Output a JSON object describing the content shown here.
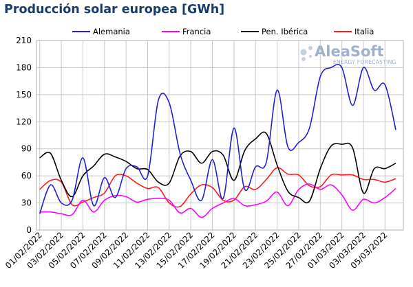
{
  "chart_data": {
    "type": "line",
    "title": "Producción solar europea [GWh]",
    "xlabel": "",
    "ylabel": "",
    "ylim": [
      0,
      210
    ],
    "yticks": [
      0,
      30,
      60,
      90,
      120,
      150,
      180,
      210
    ],
    "grid": true,
    "legend_position": "top",
    "x": [
      "01/02/2022",
      "02/02/2022",
      "03/02/2022",
      "04/02/2022",
      "05/02/2022",
      "06/02/2022",
      "07/02/2022",
      "08/02/2022",
      "09/02/2022",
      "10/02/2022",
      "11/02/2022",
      "12/02/2022",
      "13/02/2022",
      "14/02/2022",
      "15/02/2022",
      "16/02/2022",
      "17/02/2022",
      "18/02/2022",
      "19/02/2022",
      "20/02/2022",
      "21/02/2022",
      "22/02/2022",
      "23/02/2022",
      "24/02/2022",
      "25/02/2022",
      "26/02/2022",
      "27/02/2022",
      "28/02/2022",
      "01/03/2022",
      "02/03/2022",
      "03/03/2022",
      "04/03/2022",
      "05/03/2022",
      "06/03/2022"
    ],
    "xtick_labels": [
      "01/02/2022",
      "03/02/2022",
      "05/02/2022",
      "07/02/2022",
      "09/02/2022",
      "11/02/2022",
      "13/02/2022",
      "15/02/2022",
      "17/02/2022",
      "19/02/2022",
      "21/02/2022",
      "23/02/2022",
      "25/02/2022",
      "27/02/2022",
      "01/03/2022",
      "03/03/2022",
      "05/03/2022"
    ],
    "series": [
      {
        "name": "Alemania",
        "color": "#1f1fd6",
        "values": [
          18,
          50,
          30,
          33,
          80,
          27,
          58,
          36,
          68,
          70,
          60,
          144,
          141,
          85,
          55,
          33,
          78,
          35,
          113,
          45,
          70,
          75,
          155,
          92,
          97,
          113,
          170,
          180,
          180,
          138,
          180,
          155,
          161,
          111
        ]
      },
      {
        "name": "Francia",
        "color": "#ff00ff",
        "values": [
          20,
          20,
          18,
          17,
          33,
          20,
          33,
          38,
          37,
          31,
          34,
          35,
          33,
          19,
          24,
          14,
          24,
          30,
          35,
          27,
          28,
          32,
          42,
          27,
          45,
          51,
          45,
          50,
          39,
          22,
          34,
          30,
          36,
          46
        ]
      },
      {
        "name": "Pen. Ibérica",
        "color": "#000000",
        "values": [
          80,
          85,
          55,
          37,
          60,
          71,
          84,
          81,
          76,
          68,
          67,
          53,
          52,
          82,
          87,
          74,
          87,
          83,
          55,
          88,
          101,
          107,
          72,
          43,
          36,
          32,
          68,
          93,
          95,
          91,
          41,
          68,
          68,
          74
        ]
      },
      {
        "name": "Italia",
        "color": "#ff1a1a",
        "values": [
          45,
          55,
          53,
          28,
          31,
          36,
          41,
          60,
          60,
          52,
          46,
          47,
          30,
          26,
          40,
          50,
          47,
          33,
          33,
          48,
          45,
          56,
          69,
          62,
          61,
          49,
          48,
          61,
          61,
          61,
          56,
          56,
          53,
          57
        ]
      }
    ]
  },
  "watermark": {
    "brand": "AleaSoft",
    "tagline": "ENERGY FORECASTING"
  }
}
